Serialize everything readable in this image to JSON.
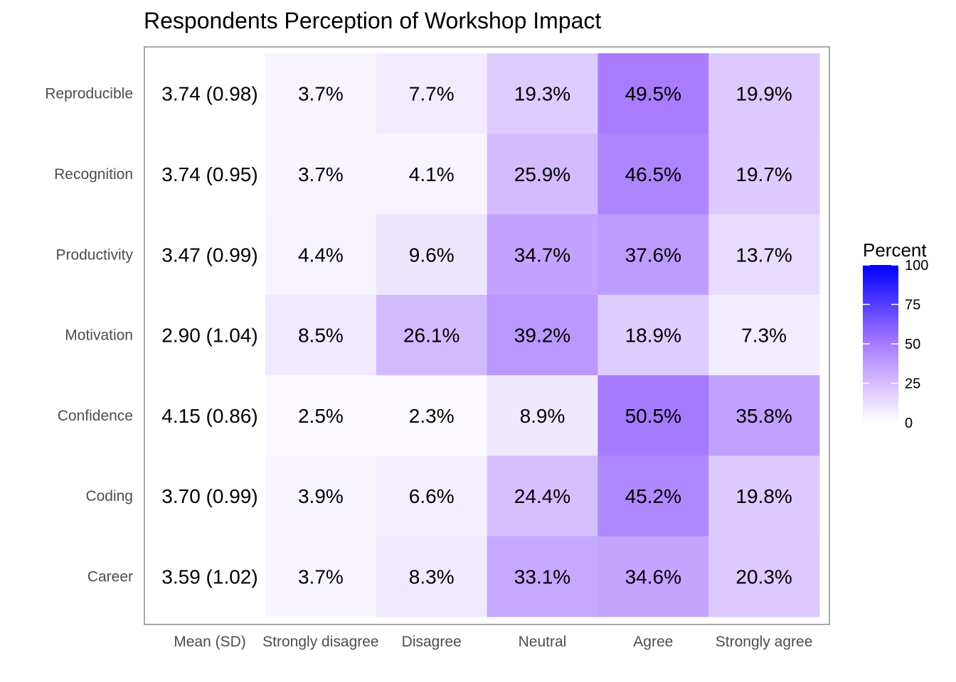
{
  "chart_data": {
    "type": "heatmap",
    "title": "Respondents Perception of Workshop Impact",
    "rows": [
      "Reproducible",
      "Recognition",
      "Productivity",
      "Motivation",
      "Confidence",
      "Coding",
      "Career"
    ],
    "mean_column_label": "Mean (SD)",
    "means": [
      "3.74 (0.98)",
      "3.74 (0.95)",
      "3.47 (0.99)",
      "2.90 (1.04)",
      "4.15 (0.86)",
      "3.70 (0.99)",
      "3.59 (1.02)"
    ],
    "columns": [
      "Strongly disagree",
      "Disagree",
      "Neutral",
      "Agree",
      "Strongly agree"
    ],
    "values": [
      [
        3.7,
        7.7,
        19.3,
        49.5,
        19.9
      ],
      [
        3.7,
        4.1,
        25.9,
        46.5,
        19.7
      ],
      [
        4.4,
        9.6,
        34.7,
        37.6,
        13.7
      ],
      [
        8.5,
        26.1,
        39.2,
        18.9,
        7.3
      ],
      [
        2.5,
        2.3,
        8.9,
        50.5,
        35.8
      ],
      [
        3.9,
        6.6,
        24.4,
        45.2,
        19.8
      ],
      [
        3.7,
        8.3,
        33.1,
        34.6,
        20.3
      ]
    ],
    "cell_labels": [
      [
        "3.7%",
        "7.7%",
        "19.3%",
        "49.5%",
        "19.9%"
      ],
      [
        "3.7%",
        "4.1%",
        "25.9%",
        "46.5%",
        "19.7%"
      ],
      [
        "4.4%",
        "9.6%",
        "34.7%",
        "37.6%",
        "13.7%"
      ],
      [
        "8.5%",
        "26.1%",
        "39.2%",
        "18.9%",
        "7.3%"
      ],
      [
        "2.5%",
        "2.3%",
        "8.9%",
        "50.5%",
        "35.8%"
      ],
      [
        "3.9%",
        "6.6%",
        "24.4%",
        "45.2%",
        "19.8%"
      ],
      [
        "3.7%",
        "8.3%",
        "33.1%",
        "34.6%",
        "20.3%"
      ]
    ],
    "legend": {
      "title": "Percent",
      "range": [
        0,
        100
      ],
      "ticks": [
        0,
        25,
        50,
        75,
        100
      ],
      "tick_labels": [
        "0",
        "25",
        "50",
        "75",
        "100"
      ],
      "low_color": "#ffffff",
      "high_color": "#0000ff",
      "midpoint_color": "#a87bff"
    },
    "colors": {
      "panel_border": "#aaaaaa"
    }
  }
}
